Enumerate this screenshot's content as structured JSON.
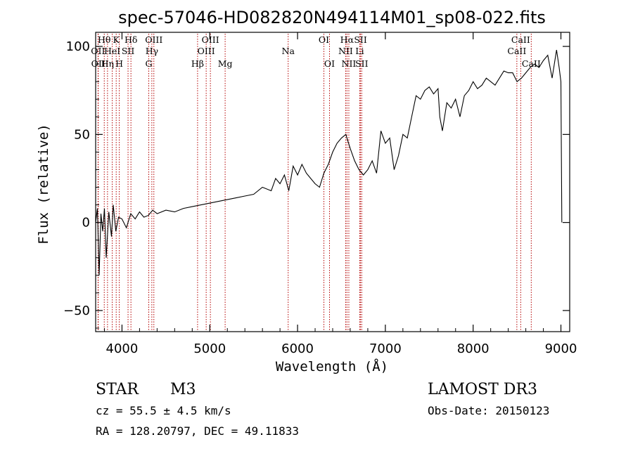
{
  "chart_data": {
    "type": "line",
    "title": "spec-57046-HD082820N494114M01_sp08-022.fits",
    "xlabel": "Wavelength (Å)",
    "ylabel": "Flux (relative)",
    "xlim": [
      3700,
      9100
    ],
    "ylim": [
      -62,
      108
    ],
    "xticks": [
      4000,
      5000,
      6000,
      7000,
      8000,
      9000
    ],
    "yticks": [
      -50,
      0,
      50,
      100
    ],
    "series": [
      {
        "name": "flux",
        "x": [
          3700,
          3720,
          3740,
          3760,
          3780,
          3800,
          3820,
          3850,
          3880,
          3900,
          3930,
          3960,
          4000,
          4050,
          4100,
          4150,
          4200,
          4250,
          4300,
          4350,
          4400,
          4500,
          4600,
          4700,
          4800,
          4900,
          5000,
          5100,
          5200,
          5300,
          5400,
          5500,
          5600,
          5700,
          5750,
          5800,
          5850,
          5900,
          5950,
          6000,
          6050,
          6100,
          6150,
          6200,
          6250,
          6300,
          6350,
          6400,
          6450,
          6500,
          6550,
          6600,
          6650,
          6700,
          6750,
          6800,
          6850,
          6900,
          6950,
          7000,
          7050,
          7100,
          7150,
          7200,
          7250,
          7300,
          7350,
          7400,
          7450,
          7500,
          7550,
          7600,
          7620,
          7650,
          7700,
          7750,
          7800,
          7850,
          7900,
          7950,
          8000,
          8050,
          8100,
          8150,
          8200,
          8250,
          8300,
          8350,
          8400,
          8450,
          8500,
          8550,
          8600,
          8650,
          8700,
          8750,
          8800,
          8850,
          8900,
          8950,
          8980,
          9000,
          9010
        ],
        "values": [
          0,
          8,
          -30,
          5,
          -5,
          8,
          -20,
          6,
          -8,
          10,
          -5,
          3,
          2,
          -3,
          5,
          2,
          6,
          3,
          4,
          7,
          5,
          7,
          6,
          8,
          9,
          10,
          11,
          12,
          13,
          14,
          15,
          16,
          20,
          18,
          25,
          22,
          27,
          18,
          32,
          27,
          33,
          28,
          25,
          22,
          20,
          28,
          33,
          40,
          45,
          48,
          50,
          42,
          35,
          30,
          27,
          30,
          35,
          28,
          52,
          45,
          48,
          30,
          38,
          50,
          48,
          60,
          72,
          70,
          75,
          77,
          73,
          76,
          60,
          52,
          68,
          65,
          70,
          60,
          72,
          75,
          80,
          76,
          78,
          82,
          80,
          78,
          82,
          86,
          85,
          85,
          80,
          82,
          85,
          88,
          90,
          88,
          92,
          95,
          82,
          98,
          88,
          80,
          0
        ]
      }
    ],
    "line_markers": [
      {
        "label": "Hθ",
        "wl": 3798,
        "row": 1
      },
      {
        "label": "OII",
        "wl": 3727,
        "row": 2
      },
      {
        "label": "OII",
        "wl": 3730,
        "row": 3
      },
      {
        "label": "K",
        "wl": 3934,
        "row": 1
      },
      {
        "label": "HeI",
        "wl": 3889,
        "row": 2
      },
      {
        "label": "Hη",
        "wl": 3835,
        "row": 3
      },
      {
        "label": "H",
        "wl": 3969,
        "row": 3
      },
      {
        "label": "Hδ",
        "wl": 4102,
        "row": 1
      },
      {
        "label": "SII",
        "wl": 4069,
        "row": 2
      },
      {
        "label": "OIII",
        "wl": 4363,
        "row": 1
      },
      {
        "label": "Hγ",
        "wl": 4340,
        "row": 2
      },
      {
        "label": "G",
        "wl": 4305,
        "row": 3
      },
      {
        "label": "OIII",
        "wl": 5007,
        "row": 1
      },
      {
        "label": "OIII",
        "wl": 4959,
        "row": 2
      },
      {
        "label": "Hβ",
        "wl": 4861,
        "row": 3
      },
      {
        "label": "Mg",
        "wl": 5175,
        "row": 3
      },
      {
        "label": "Na",
        "wl": 5893,
        "row": 2
      },
      {
        "label": "OI",
        "wl": 6300,
        "row": 1
      },
      {
        "label": "OI",
        "wl": 6364,
        "row": 3
      },
      {
        "label": "Hα",
        "wl": 6563,
        "row": 1
      },
      {
        "label": "NII",
        "wl": 6548,
        "row": 2
      },
      {
        "label": "NII",
        "wl": 6584,
        "row": 3
      },
      {
        "label": "SII",
        "wl": 6717,
        "row": 1
      },
      {
        "label": "Li",
        "wl": 6708,
        "row": 2
      },
      {
        "label": "SII",
        "wl": 6731,
        "row": 3
      },
      {
        "label": "CaII",
        "wl": 8542,
        "row": 1
      },
      {
        "label": "CaII",
        "wl": 8498,
        "row": 2
      },
      {
        "label": "CaII",
        "wl": 8662,
        "row": 3
      }
    ]
  },
  "info": {
    "object_class": "STAR",
    "subclass": "M3",
    "survey": "LAMOST DR3",
    "redshift_text": "cz = 55.5 ± 4.5 km/s",
    "obs_date": "Obs-Date: 20150123",
    "coords": "RA = 128.20797, DEC =  49.11833"
  }
}
